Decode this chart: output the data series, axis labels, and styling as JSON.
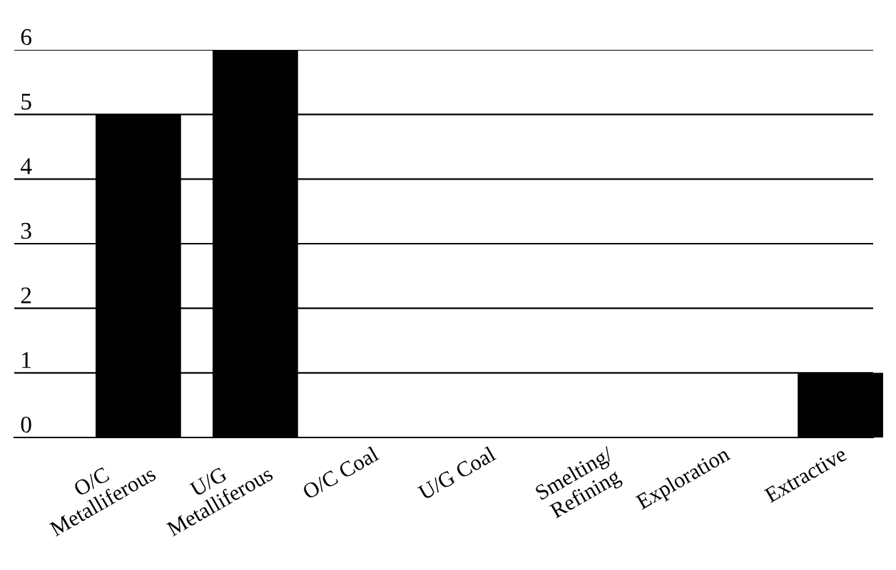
{
  "chart_data": {
    "type": "bar",
    "categories": [
      "O/C\nMetalliferous",
      "U/G\nMetalliferous",
      "O/C Coal",
      "U/G Coal",
      "Smelting/\nRefining",
      "Exploration",
      "Extractive"
    ],
    "values": [
      5,
      6,
      0,
      0,
      0,
      0,
      1
    ],
    "color": "#000000",
    "ylim": [
      0,
      6
    ],
    "yticks": [
      0,
      1,
      2,
      3,
      4,
      5,
      6
    ],
    "grid": "y",
    "legend": false
  }
}
